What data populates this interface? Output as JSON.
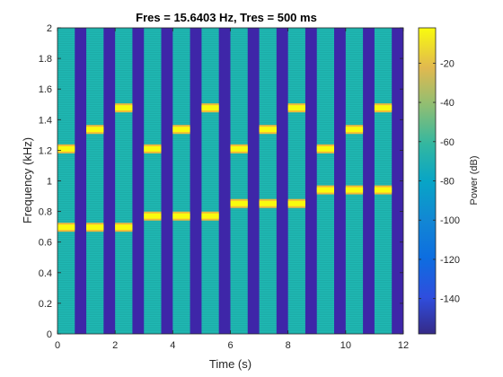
{
  "chart_data": {
    "type": "heatmap",
    "title": "Fres = 15.6403 Hz, Tres = 500 ms",
    "xlabel": "Time (s)",
    "ylabel": "Frequency (kHz)",
    "xlim": [
      0,
      12
    ],
    "ylim": [
      0,
      2
    ],
    "xticks": [
      "0",
      "2",
      "4",
      "6",
      "8",
      "10",
      "12"
    ],
    "yticks": [
      "0",
      "0.2",
      "0.4",
      "0.6",
      "0.8",
      "1",
      "1.2",
      "1.4",
      "1.6",
      "1.8",
      "2"
    ],
    "colorbar": {
      "label": "Power (dB)",
      "range": [
        -158,
        -2
      ],
      "ticks": [
        "-20",
        "-40",
        "-60",
        "-80",
        "-100",
        "-120",
        "-140"
      ],
      "colormap": "parula"
    },
    "tone_segments": [
      {
        "t_start": 0,
        "t_end": 0.6,
        "tones_khz": [
          0.697,
          1.209
        ]
      },
      {
        "t_start": 1,
        "t_end": 1.6,
        "tones_khz": [
          0.697,
          1.336
        ]
      },
      {
        "t_start": 2,
        "t_end": 2.6,
        "tones_khz": [
          0.697,
          1.477
        ]
      },
      {
        "t_start": 3,
        "t_end": 3.6,
        "tones_khz": [
          0.77,
          1.209
        ]
      },
      {
        "t_start": 4,
        "t_end": 4.6,
        "tones_khz": [
          0.77,
          1.336
        ]
      },
      {
        "t_start": 5,
        "t_end": 5.6,
        "tones_khz": [
          0.77,
          1.477
        ]
      },
      {
        "t_start": 6,
        "t_end": 6.6,
        "tones_khz": [
          0.852,
          1.209
        ]
      },
      {
        "t_start": 7,
        "t_end": 7.6,
        "tones_khz": [
          0.852,
          1.336
        ]
      },
      {
        "t_start": 8,
        "t_end": 8.6,
        "tones_khz": [
          0.852,
          1.477
        ]
      },
      {
        "t_start": 9,
        "t_end": 9.6,
        "tones_khz": [
          0.941,
          1.209
        ]
      },
      {
        "t_start": 10,
        "t_end": 10.6,
        "tones_khz": [
          0.941,
          1.336
        ]
      },
      {
        "t_start": 11,
        "t_end": 11.6,
        "tones_khz": [
          0.941,
          1.477
        ]
      }
    ],
    "silence_power_db": -155,
    "background_power_db": -75,
    "tone_power_db": -5,
    "colors": {
      "silence": "#3e26a8",
      "background": "#1fb8b3",
      "tone": "#f9fb0e",
      "tone_edge": "#f0b93a"
    }
  }
}
